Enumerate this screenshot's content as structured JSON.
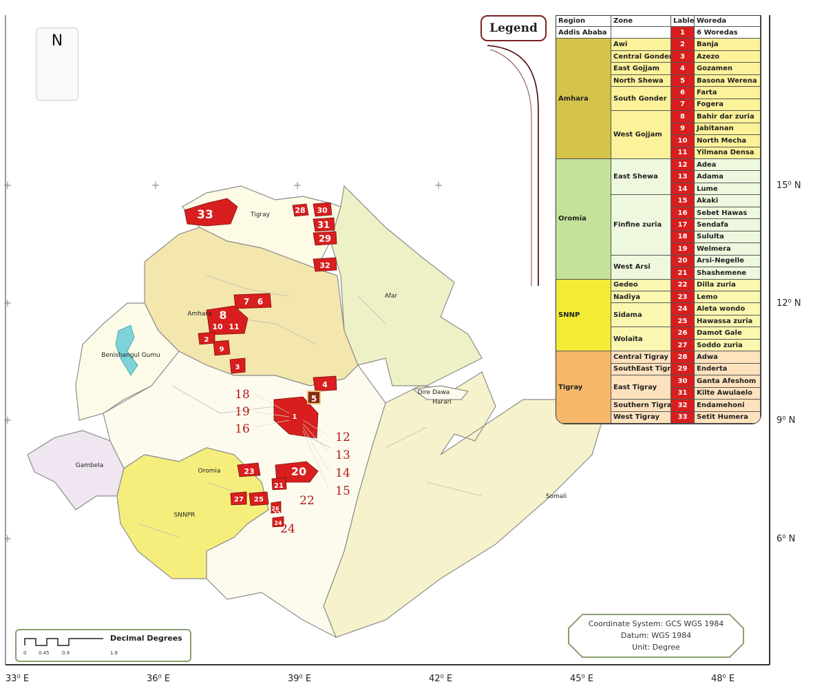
{
  "north_arrow": {
    "letter": "N"
  },
  "longitude_labels": [
    "33⁰ E",
    "36⁰ E",
    "39⁰ E",
    "42⁰ E",
    "45⁰ E",
    "48⁰ E"
  ],
  "latitude_labels": [
    "15⁰ N",
    "12⁰ N",
    "9⁰ N",
    "6⁰ N"
  ],
  "legend": {
    "title": "Legend",
    "headers": {
      "region": "Region",
      "zone": "Zone",
      "label": "Lable",
      "woreda": "Woreda"
    },
    "regions": [
      {
        "name": "Addis Ababa",
        "color": "#ffffff",
        "start": 0,
        "span": 1
      },
      {
        "name": "Amhara",
        "color": "#d4c34a",
        "start": 1,
        "span": 10
      },
      {
        "name": "Oromia",
        "color": "#c4e39a",
        "start": 11,
        "span": 10
      },
      {
        "name": "SNNP",
        "color": "#f4ec34",
        "start": 21,
        "span": 6
      },
      {
        "name": "Tigray",
        "color": "#f5b86a",
        "start": 27,
        "span": 6
      }
    ],
    "zones": [
      {
        "name": "",
        "start": 0,
        "span": 1,
        "color": "#ffffff"
      },
      {
        "name": "Awi",
        "start": 1,
        "span": 1,
        "color": "#fbf29a"
      },
      {
        "name": "Central Gonder",
        "start": 2,
        "span": 1,
        "color": "#fbf29a"
      },
      {
        "name": "East Gojjam",
        "start": 3,
        "span": 1,
        "color": "#fbf29a"
      },
      {
        "name": "North Shewa",
        "start": 4,
        "span": 1,
        "color": "#fbf29a"
      },
      {
        "name": "South Gonder",
        "start": 5,
        "span": 2,
        "color": "#fbf29a"
      },
      {
        "name": "West Gojjam",
        "start": 7,
        "span": 4,
        "color": "#fbf29a"
      },
      {
        "name": "East Shewa",
        "start": 11,
        "span": 3,
        "color": "#eef8de"
      },
      {
        "name": "Finfine zuria",
        "start": 14,
        "span": 5,
        "color": "#eef8de"
      },
      {
        "name": "West Arsi",
        "start": 19,
        "span": 2,
        "color": "#eef8de"
      },
      {
        "name": "Gedeo",
        "start": 21,
        "span": 1,
        "color": "#fbf7b0"
      },
      {
        "name": "Nadiya",
        "start": 22,
        "span": 1,
        "color": "#fbf7b0"
      },
      {
        "name": "Sidama",
        "start": 23,
        "span": 2,
        "color": "#fbf7b0"
      },
      {
        "name": "Wolaita",
        "start": 25,
        "span": 2,
        "color": "#fbf7b0"
      },
      {
        "name": "Central Tigray",
        "start": 27,
        "span": 1,
        "color": "#fde2bd"
      },
      {
        "name": "SouthEast Tigray",
        "start": 28,
        "span": 1,
        "color": "#fde2bd"
      },
      {
        "name": "East Tigray",
        "start": 29,
        "span": 2,
        "color": "#fde2bd"
      },
      {
        "name": "Southern Tigray",
        "start": 31,
        "span": 1,
        "color": "#fde2bd"
      },
      {
        "name": "West Tigray",
        "start": 32,
        "span": 1,
        "color": "#fde2bd"
      }
    ],
    "rows": [
      {
        "label": "1",
        "woreda": "6 Woredas"
      },
      {
        "label": "2",
        "woreda": "Banja"
      },
      {
        "label": "3",
        "woreda": "Azezo"
      },
      {
        "label": "4",
        "woreda": "Gozamen"
      },
      {
        "label": "5",
        "woreda": "Basona Werena"
      },
      {
        "label": "6",
        "woreda": "Farta"
      },
      {
        "label": "7",
        "woreda": "Fogera"
      },
      {
        "label": "8",
        "woreda": "Bahir dar zuria"
      },
      {
        "label": "9",
        "woreda": "Jabitanan"
      },
      {
        "label": "10",
        "woreda": "North Mecha"
      },
      {
        "label": "11",
        "woreda": "Yilmana Densa"
      },
      {
        "label": "12",
        "woreda": "Adea"
      },
      {
        "label": "13",
        "woreda": "Adama"
      },
      {
        "label": "14",
        "woreda": "Lume"
      },
      {
        "label": "15",
        "woreda": "Akaki"
      },
      {
        "label": "16",
        "woreda": "Sebet Hawas"
      },
      {
        "label": "17",
        "woreda": "Sendafa"
      },
      {
        "label": "18",
        "woreda": "Sululta"
      },
      {
        "label": "19",
        "woreda": "Welmera"
      },
      {
        "label": "20",
        "woreda": "Arsi-Negelle"
      },
      {
        "label": "21",
        "woreda": "Shashemene"
      },
      {
        "label": "22",
        "woreda": "Dilla zuria"
      },
      {
        "label": "23",
        "woreda": "Lemo"
      },
      {
        "label": "24",
        "woreda": "Aleta wondo"
      },
      {
        "label": "25",
        "woreda": "Hawassa zuria"
      },
      {
        "label": "26",
        "woreda": "Damot Gale"
      },
      {
        "label": "27",
        "woreda": "Soddo zuria"
      },
      {
        "label": "28",
        "woreda": "Adwa"
      },
      {
        "label": "29",
        "woreda": "Enderta"
      },
      {
        "label": "30",
        "woreda": "Ganta Afeshom"
      },
      {
        "label": "31",
        "woreda": "Kilte Awulaelo"
      },
      {
        "label": "32",
        "woreda": "Endamehoni"
      },
      {
        "label": "33",
        "woreda": "Setit Humera"
      }
    ]
  },
  "map_regions": [
    "Tigray",
    "Afar",
    "Amhara",
    "Benishangul Gumu",
    "Dire Dawa",
    "Harari",
    "Gambela",
    "Oromia",
    "SNNPR",
    "Somali"
  ],
  "map_woreda_labels": [
    "33",
    "28",
    "30",
    "31",
    "29",
    "32",
    "7",
    "6",
    "8",
    "10",
    "11",
    "2",
    "9",
    "3",
    "4",
    "5",
    "1",
    "20",
    "21",
    "23",
    "27",
    "25",
    "26",
    "24",
    "22"
  ],
  "callout_numbers": [
    "18",
    "19",
    "16",
    "12",
    "13",
    "14",
    "15",
    "22",
    "24"
  ],
  "scale_bar": {
    "unit": "Decimal Degrees",
    "ticks": [
      "0",
      "0.45",
      "0.9",
      "1.8"
    ]
  },
  "coordinate_info": {
    "system": "Coordinate System: GCS WGS 1984",
    "datum": "Datum: WGS 1984",
    "unit": "Unit: Degree"
  },
  "colors": {
    "woreda_red": "#d81e1e",
    "border": "#8c8c8c"
  }
}
